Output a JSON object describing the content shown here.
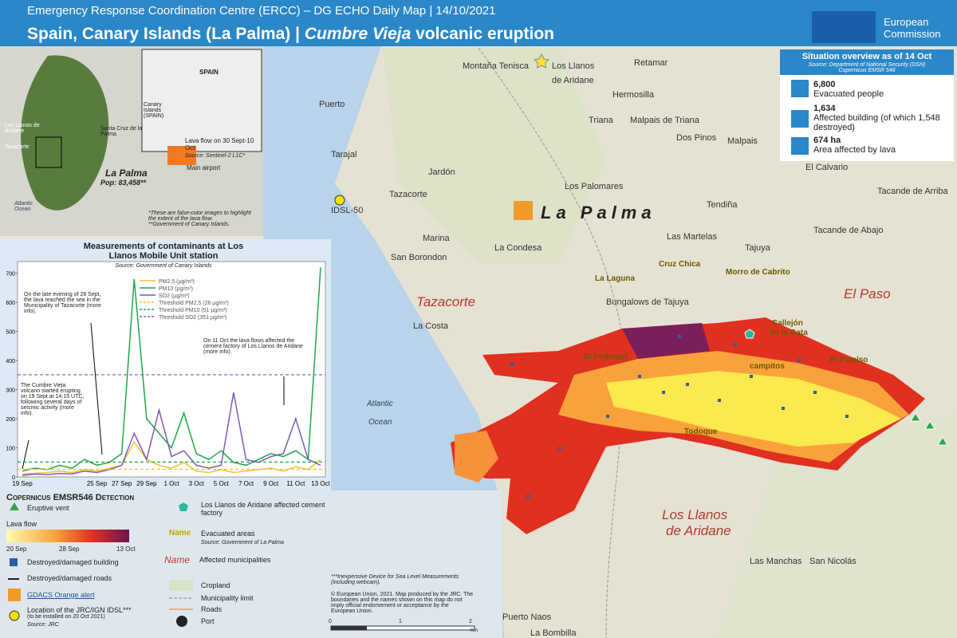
{
  "header": {
    "subtitle": "Emergency Response Coordination Centre (ERCC) – DG ECHO Daily Map | 14/10/2021",
    "title_main": "Spain, Canary Islands (La Palma) |",
    "title_italic": "Cumbre Vieja",
    "title_end": "volcanic eruption",
    "logo": [
      "European",
      "Commission"
    ]
  },
  "overview": {
    "title": "Situation overview as of 14 Oct",
    "source": "Source: Department of National Security (DSN)",
    "source2": "Copernicus EMSR 546",
    "items": [
      {
        "value": "6,800",
        "label": "Evacuated people"
      },
      {
        "value": "1,634",
        "label": "Affected building (of which 1,548 destroyed)"
      },
      {
        "value": "674 ha",
        "label": "Area affected by lava"
      }
    ]
  },
  "inset": {
    "spain": "SPAIN",
    "canary": "Canary Islands (SPAIN)",
    "llanos": "Los Llanos de Aridane",
    "tazacorte": "Tazacorte",
    "santa_cruz": "Santa Cruz de la Palma",
    "island": "La Palma",
    "pop": "Pop: 83,458**",
    "ocean": "Atlantic Ocean",
    "lava": "Lava flow on 30 Sept-10 Oct",
    "lava_source": "Source: Sentinel-2 L1C*",
    "airport": "Main airport",
    "note1": "*These are false-color images to highlight the extent of the lava flow.",
    "note2": "**Government of Canary Islands."
  },
  "chart_data": {
    "type": "line",
    "title": "Measurements of contaminants at Los Llanos Mobile Unit station",
    "source": "Source: Government of Canary Islands",
    "categories": [
      "19 Sep",
      null,
      null,
      null,
      null,
      null,
      "25 Sep",
      null,
      "27 Sep",
      null,
      "29 Sep",
      null,
      "1 Oct",
      null,
      "3 Oct",
      null,
      "5 Oct",
      null,
      "7 Oct",
      null,
      "9 Oct",
      null,
      "11 Oct",
      null,
      "13 Oct"
    ],
    "series": [
      {
        "name": "PM2,5 (µg/m³)",
        "color": "#f2c12e",
        "values": [
          10,
          12,
          15,
          20,
          15,
          25,
          20,
          30,
          40,
          120,
          60,
          40,
          30,
          50,
          20,
          15,
          25,
          15,
          20,
          25,
          30,
          20,
          35,
          25,
          60
        ]
      },
      {
        "name": "PM10 (µg/m³)",
        "color": "#1fa64a",
        "values": [
          20,
          30,
          25,
          40,
          30,
          60,
          40,
          50,
          80,
          680,
          200,
          150,
          100,
          220,
          80,
          60,
          90,
          50,
          40,
          60,
          80,
          70,
          90,
          60,
          720
        ]
      },
      {
        "name": "SO2 (µg/m³)",
        "color": "#7a5bb5",
        "values": [
          5,
          10,
          8,
          12,
          10,
          20,
          15,
          25,
          40,
          150,
          60,
          230,
          70,
          90,
          40,
          30,
          40,
          290,
          60,
          50,
          70,
          80,
          200,
          60,
          40
        ]
      }
    ],
    "thresholds": [
      {
        "name": "Threshold PM2,5 (26 µg/m³)",
        "value": 26,
        "color": "#f2c12e"
      },
      {
        "name": "Threshold PM10 (51 µg/m³)",
        "value": 51,
        "color": "#1fa64a"
      },
      {
        "name": "Threshold SO2 (351 µg/m³)",
        "value": 351,
        "color": "#7a5bb5"
      }
    ],
    "ylim": [
      0,
      740
    ],
    "yticks": [
      0,
      100,
      200,
      300,
      400,
      500,
      600,
      700
    ],
    "annotations": [
      "On the late evening of 28 Sept, the lava reached the sea in the Municipality of Tazacorte (more info).",
      "On 11 Oct the lava flows affected the cement factory of Los Llanos de Aridane (more info).",
      "The Cumbre Vieja volcano started erupting on 19 Sept at 14.15 UTC, following several days of seismic activity (more info)."
    ]
  },
  "map": {
    "island_label": "La Palma",
    "places": [
      "Montaña Tenisca",
      "Los Llanos",
      "de Aridane",
      "Retamar",
      "Puerto",
      "Hermosilla",
      "Triana",
      "Malpais de Triana",
      "Dos Pinos",
      "Malpais",
      "Tarajal",
      "Jardón",
      "Tazacorte",
      "Los Palomares",
      "IDSL-50",
      "El Calvario",
      "Tacande de Arriba",
      "Tendiña",
      "Tacande de Abajo",
      "Las Martelas",
      "Tajuya",
      "Marina",
      "La Condesa",
      "San Borondon",
      "Cruz Chica",
      "Morro de Cabrito",
      "La Laguna",
      "Bungalows de Tajuya",
      "Tazacorte",
      "El Paso",
      "La Costa",
      "Callejón",
      "de la Gata",
      "El Pedregal",
      "El Paraíso",
      "campitos",
      "Todoque",
      "Atlantic",
      "Ocean",
      "Los Llanos",
      "de Aridane",
      "Las Manchas",
      "San Nicolás",
      "Puerto Naos",
      "La Bombilla"
    ]
  },
  "legend": {
    "title": "Copernicus EMSR546 Detection",
    "vent": "Eruptive vent",
    "lava": "Lava flow",
    "lava_dates": [
      "20 Sep",
      "28 Sep",
      "13 Oct"
    ],
    "building": "Destroyed/damaged building",
    "roads_damaged": "Destroyed/damaged roads",
    "gdacs": "GDACS Orange alert",
    "idsl": "Location of the JRC/IGN IDSL***",
    "idsl_note": "(to be installed on 20 Oct 2021)",
    "idsl_source": "Source: JRC",
    "cement": "Los Llanos de Aridane affected cement factory",
    "evac_name": "Name",
    "evac": "Evacuated areas",
    "evac_source": "Source: Government of La Palma",
    "muni_name": "Name",
    "muni": "Affected municipalities",
    "cropland": "Cropland",
    "muni_limit": "Municipality limit",
    "roads": "Roads",
    "port": "Port",
    "note": "***Inexpensive Device for Sea Level Measurements (including webcam).",
    "copyright": "© European Union, 2021. Map produced by the JRC. The boundaries and the names shown on this map do not imply official endorsement or acceptance by the European Union.",
    "scale": [
      "0",
      "1",
      "2",
      "Km"
    ]
  }
}
